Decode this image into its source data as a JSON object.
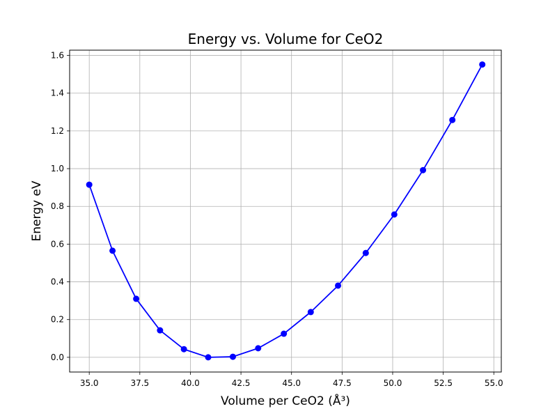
{
  "chart_data": {
    "type": "line",
    "title": "Energy vs. Volume for CeO2",
    "xlabel": "Volume per CeO2 (Å³)",
    "ylabel": "Energy eV",
    "xlim": [
      34.03,
      55.37
    ],
    "ylim": [
      -0.078,
      1.628
    ],
    "xticks": [
      35.0,
      37.5,
      40.0,
      42.5,
      45.0,
      47.5,
      50.0,
      52.5,
      55.0
    ],
    "xtick_labels": [
      "35.0",
      "37.5",
      "40.0",
      "42.5",
      "45.0",
      "47.5",
      "50.0",
      "52.5",
      "55.0"
    ],
    "yticks": [
      0.0,
      0.2,
      0.4,
      0.6,
      0.8,
      1.0,
      1.2,
      1.4,
      1.6
    ],
    "ytick_labels": [
      "0.0",
      "0.2",
      "0.4",
      "0.6",
      "0.8",
      "1.0",
      "1.2",
      "1.4",
      "1.6"
    ],
    "grid": true,
    "series": [
      {
        "color": "#0000ff",
        "marker": "circle",
        "x": [
          35.0,
          36.15,
          37.32,
          38.5,
          39.68,
          40.88,
          42.1,
          43.35,
          44.62,
          45.95,
          47.3,
          48.67,
          50.08,
          51.5,
          52.95,
          54.43
        ],
        "y": [
          0.915,
          0.565,
          0.31,
          0.143,
          0.043,
          0.0,
          0.003,
          0.048,
          0.125,
          0.24,
          0.38,
          0.553,
          0.757,
          0.992,
          1.258,
          1.552
        ]
      }
    ]
  }
}
